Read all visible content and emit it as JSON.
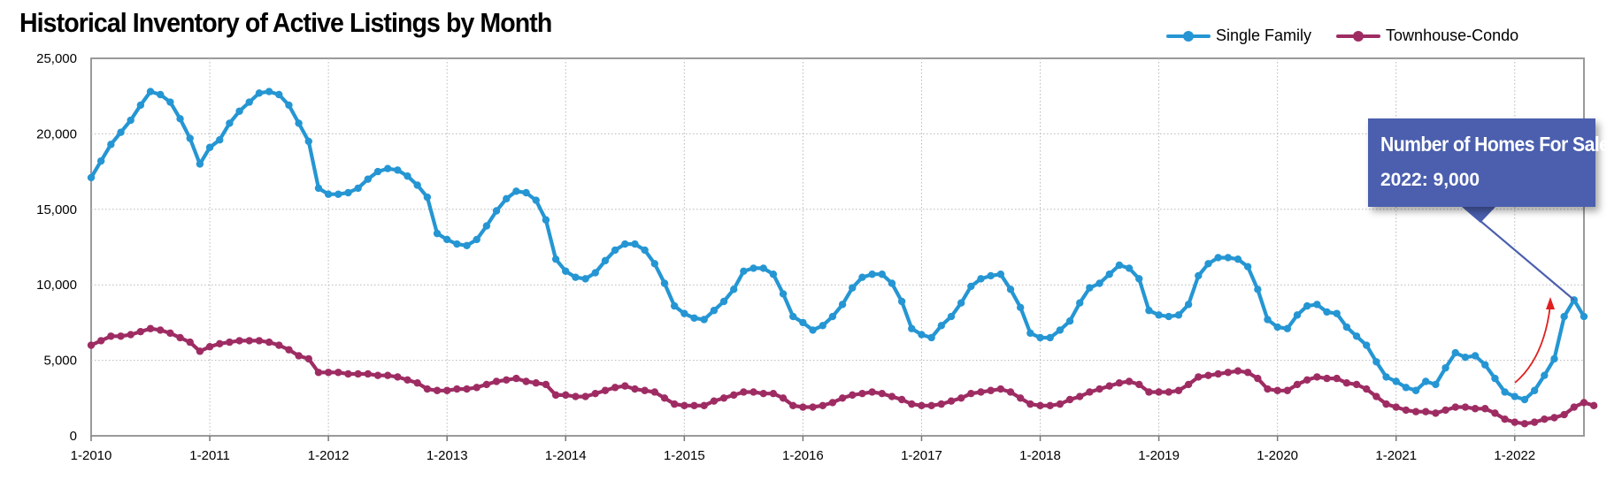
{
  "chart_data": {
    "type": "line",
    "title": "Historical Inventory of Active Listings by Month",
    "xlabel": "",
    "ylabel": "",
    "ylim": [
      0,
      25000
    ],
    "yticks": [
      "0",
      "5,000",
      "10,000",
      "15,000",
      "20,000",
      "25,000"
    ],
    "xticks": [
      "1-2010",
      "1-2011",
      "1-2012",
      "1-2013",
      "1-2014",
      "1-2015",
      "1-2016",
      "1-2017",
      "1-2018",
      "1-2019",
      "1-2020",
      "1-2021",
      "1-2022"
    ],
    "x_start": "1-2010",
    "x_end": "8-2022",
    "grid": true,
    "legend_position": "top-right",
    "series": [
      {
        "name": "Single Family",
        "color": "#2596d3",
        "values": [
          17100,
          18200,
          19300,
          20100,
          20900,
          21900,
          22800,
          22600,
          22100,
          21000,
          19700,
          18000,
          19100,
          19600,
          20700,
          21500,
          22100,
          22700,
          22800,
          22600,
          21900,
          20700,
          19500,
          16400,
          16000,
          16000,
          16100,
          16400,
          17000,
          17500,
          17700,
          17600,
          17200,
          16600,
          15800,
          13400,
          13000,
          12700,
          12600,
          13000,
          13900,
          14900,
          15700,
          16200,
          16100,
          15600,
          14300,
          11700,
          10900,
          10500,
          10400,
          10800,
          11600,
          12300,
          12700,
          12700,
          12300,
          11400,
          10100,
          8600,
          8100,
          7800,
          7700,
          8300,
          8900,
          9700,
          10900,
          11100,
          11100,
          10700,
          9400,
          7900,
          7500,
          7000,
          7300,
          7900,
          8700,
          9800,
          10500,
          10700,
          10700,
          10100,
          8900,
          7100,
          6700,
          6500,
          7300,
          7900,
          8800,
          9900,
          10400,
          10600,
          10700,
          9700,
          8500,
          6800,
          6500,
          6500,
          7000,
          7600,
          8800,
          9800,
          10100,
          10700,
          11300,
          11100,
          10400,
          8300,
          8000,
          7900,
          8000,
          8700,
          10600,
          11400,
          11800,
          11800,
          11700,
          11200,
          9700,
          7700,
          7200,
          7100,
          8000,
          8600,
          8700,
          8200,
          8100,
          7200,
          6600,
          6000,
          4900,
          3900,
          3600,
          3200,
          3000,
          3600,
          3400,
          4500,
          5500,
          5200,
          5300,
          4700,
          3800,
          2900,
          2600,
          2400,
          3000,
          4000,
          5100,
          7900,
          9000,
          7900
        ]
      },
      {
        "name": "Townhouse-Condo",
        "color": "#9e2c63",
        "values": [
          6000,
          6300,
          6600,
          6600,
          6700,
          6900,
          7100,
          7000,
          6800,
          6500,
          6200,
          5600,
          5900,
          6100,
          6200,
          6300,
          6300,
          6300,
          6200,
          6000,
          5700,
          5300,
          5100,
          4200,
          4200,
          4200,
          4100,
          4100,
          4100,
          4000,
          4000,
          3900,
          3700,
          3500,
          3100,
          3000,
          3000,
          3100,
          3100,
          3200,
          3400,
          3600,
          3700,
          3800,
          3600,
          3500,
          3400,
          2700,
          2700,
          2600,
          2600,
          2800,
          3000,
          3200,
          3300,
          3100,
          3000,
          2900,
          2500,
          2100,
          2000,
          2000,
          2000,
          2300,
          2500,
          2700,
          2900,
          2900,
          2800,
          2800,
          2500,
          2000,
          1900,
          1900,
          2000,
          2200,
          2500,
          2700,
          2800,
          2900,
          2800,
          2600,
          2400,
          2100,
          2000,
          2000,
          2100,
          2300,
          2500,
          2800,
          2900,
          3000,
          3100,
          2900,
          2500,
          2100,
          2000,
          2000,
          2100,
          2400,
          2600,
          2900,
          3100,
          3300,
          3500,
          3600,
          3400,
          2900,
          2900,
          2900,
          3000,
          3400,
          3900,
          4000,
          4100,
          4200,
          4300,
          4200,
          3800,
          3100,
          3000,
          3000,
          3400,
          3700,
          3900,
          3800,
          3800,
          3500,
          3400,
          3100,
          2600,
          2100,
          1900,
          1700,
          1600,
          1600,
          1500,
          1700,
          1900,
          1900,
          1800,
          1800,
          1500,
          1100,
          900,
          800,
          900,
          1100,
          1200,
          1400,
          1900,
          2200,
          2000
        ]
      }
    ],
    "annotation": {
      "line1": "Number of Homes For Sale",
      "line2": "2022: 9,000"
    }
  }
}
